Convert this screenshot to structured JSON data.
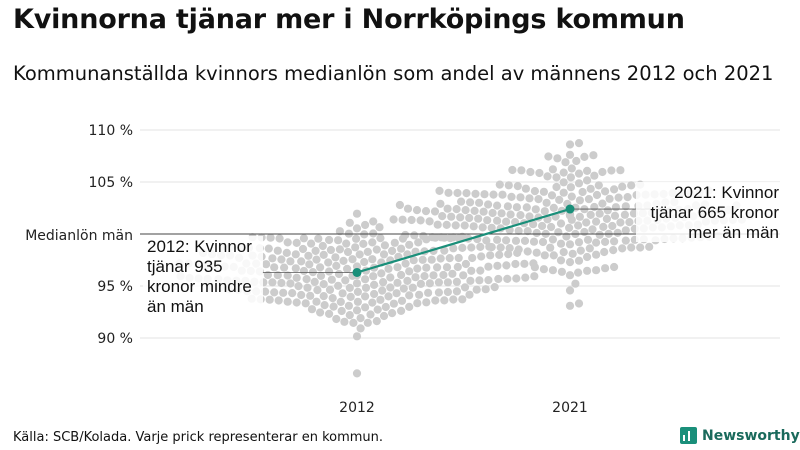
{
  "title": "Kvinnorna tjänar mer i Norrköpings kommun",
  "subtitle": "Kommunanställda kvinnors medianlön som andel av männens 2012 och 2021",
  "source": "Källa: SCB/Kolada. Varje prick representerar en kommun.",
  "brand": "Newsworthy",
  "chart_data": {
    "type": "scatter",
    "subtype": "beeswarm",
    "categories": [
      "2012",
      "2021"
    ],
    "ylim": [
      86,
      112
    ],
    "yticks": [
      {
        "value": 90,
        "label": "90 %"
      },
      {
        "value": 95,
        "label": "95 %"
      },
      {
        "value": 105,
        "label": "105 %"
      },
      {
        "value": 110,
        "label": "110 %"
      }
    ],
    "reference_line": {
      "value": 100,
      "label": "Medianlön män"
    },
    "highlight": {
      "name": "Norrköping",
      "values": [
        {
          "x": "2012",
          "y": 96.3
        },
        {
          "x": "2021",
          "y": 102.4
        }
      ],
      "color": "#1a8f7a"
    },
    "annotations": [
      {
        "x": "2012",
        "lines": [
          "2012: Kvinnor",
          "tjänar 935",
          "kronor mindre",
          "än män"
        ]
      },
      {
        "x": "2021",
        "lines": [
          "2021: Kvinnor",
          "tjänar 665 kronor",
          "mer än män"
        ]
      }
    ],
    "distribution": {
      "2012": {
        "center": 96.2,
        "spread": 2.3,
        "min": 89.0,
        "max": 105.3,
        "count": 290,
        "outliers": [
          86.6
        ]
      },
      "2021": {
        "center": 101.8,
        "spread": 2.5,
        "min": 92.6,
        "max": 111.3,
        "count": 290,
        "outliers": []
      }
    },
    "dot_color": "#cccccc",
    "grid": true
  }
}
